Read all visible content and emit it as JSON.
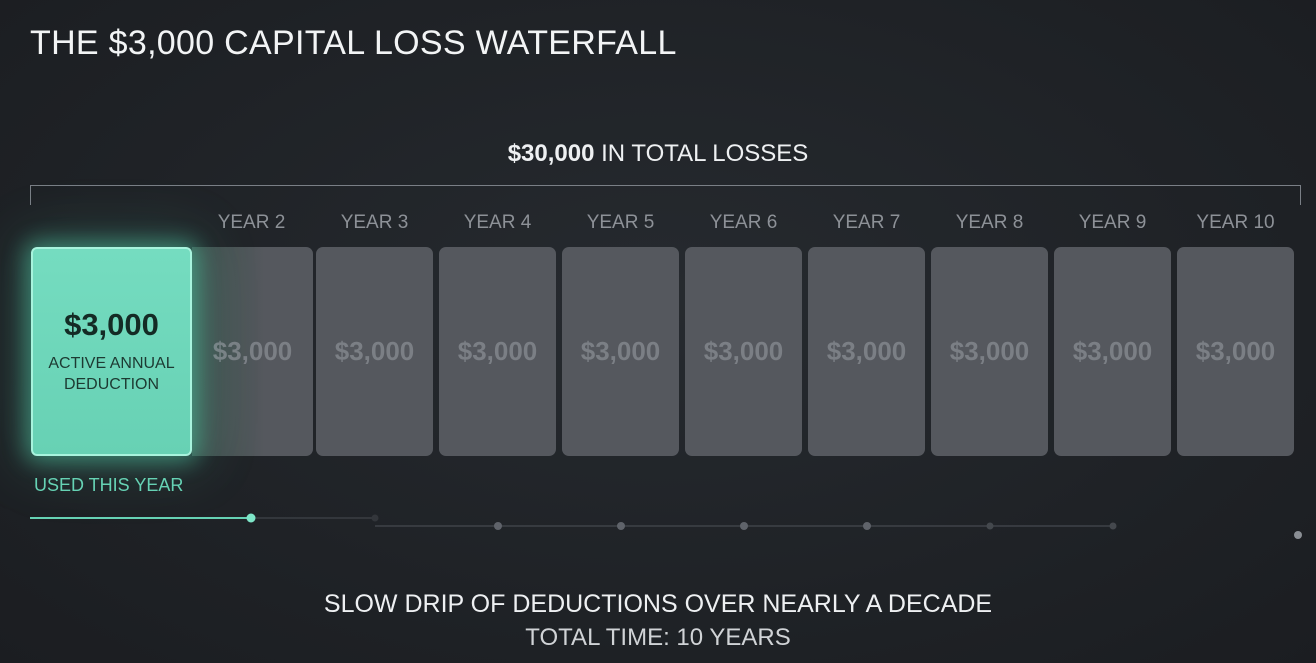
{
  "title": "THE $3,000 CAPITAL LOSS WATERFALL",
  "total": {
    "amount": "$30,000",
    "suffix": "IN TOTAL LOSSES"
  },
  "active": {
    "amount": "$3,000",
    "line1": "ACTIVE ANNUAL",
    "line2": "DEDUCTION",
    "status": "USED THIS YEAR"
  },
  "years": [
    {
      "label": "YEAR 2",
      "amount": "$3,000"
    },
    {
      "label": "YEAR 3",
      "amount": "$3,000"
    },
    {
      "label": "YEAR 4",
      "amount": "$3,000"
    },
    {
      "label": "YEAR 5",
      "amount": "$3,000"
    },
    {
      "label": "YEAR 6",
      "amount": "$3,000"
    },
    {
      "label": "YEAR 7",
      "amount": "$3,000"
    },
    {
      "label": "YEAR 8",
      "amount": "$3,000"
    },
    {
      "label": "YEAR 9",
      "amount": "$3,000"
    },
    {
      "label": "YEAR 10",
      "amount": "$3,000"
    }
  ],
  "footer": {
    "line1": "SLOW DRIP OF DEDUCTIONS OVER NEARLY A DECADE",
    "line2": "TOTAL TIME: 10 YEARS"
  },
  "colors": {
    "accent": "#67d1b4",
    "card": "#55585e",
    "background": "#1f2226"
  }
}
